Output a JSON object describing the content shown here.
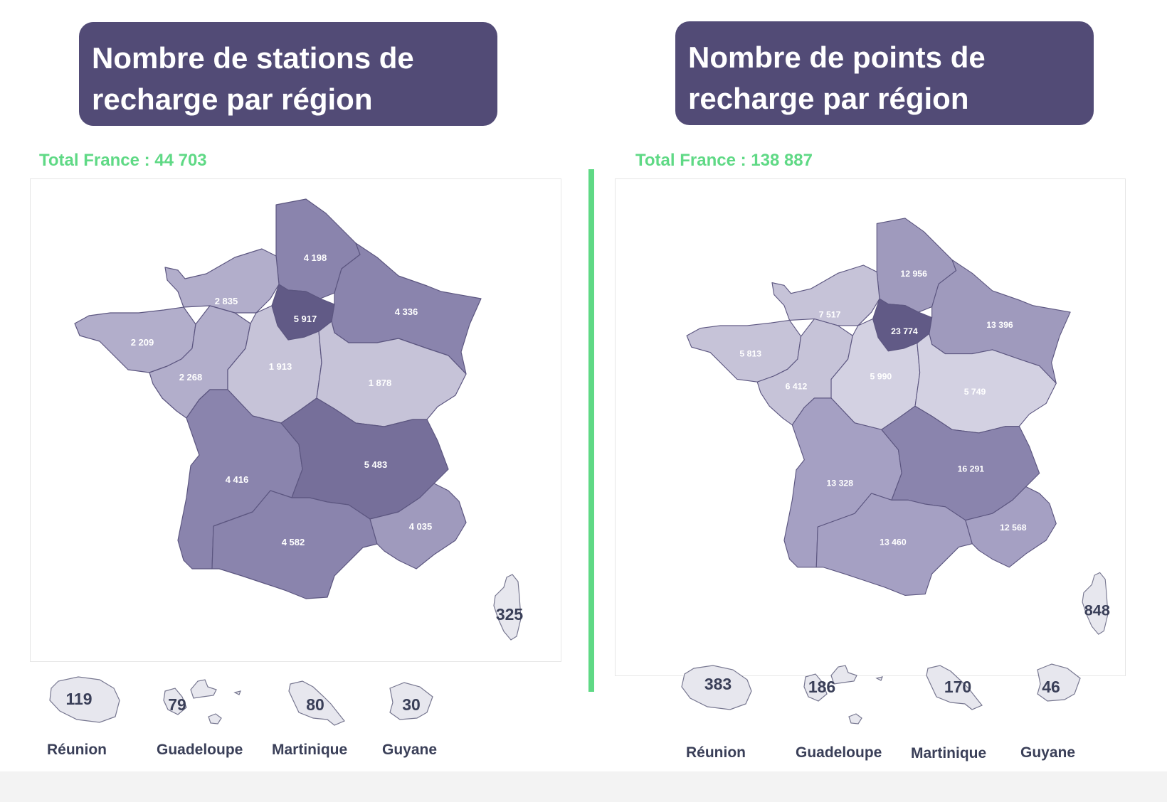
{
  "colors": {
    "title_bg": "#524b76",
    "total_text": "#5fd985",
    "divider": "#5fd985",
    "scale": [
      "#c6c3d8",
      "#b2aecb",
      "#9f9abd",
      "#8a84ad",
      "#766f9a",
      "#615a86"
    ],
    "island": "#e7e7ee"
  },
  "panels": [
    {
      "title_line1": "Nombre de stations de",
      "title_line2": "recharge par région",
      "total": "Total France : 44 703",
      "regions": {
        "hauts_de_france": "4 198",
        "normandie": "2 835",
        "ile_de_france": "5 917",
        "grand_est": "4 336",
        "bretagne": "2 209",
        "pays_de_la_loire": "2 268",
        "centre_val_de_loire": "1 913",
        "bourgogne_franche_comte": "1 878",
        "nouvelle_aquitaine": "4 416",
        "auvergne_rhone_alpes": "5 483",
        "occitanie": "4 582",
        "paca": "4 035"
      },
      "corse": "325",
      "outremer": [
        {
          "name": "Réunion",
          "value": "119"
        },
        {
          "name": "Guadeloupe",
          "value": "79"
        },
        {
          "name": "Martinique",
          "value": "80"
        },
        {
          "name": "Guyane",
          "value": "30"
        }
      ]
    },
    {
      "title_line1": "Nombre de points de",
      "title_line2": "recharge par région",
      "total": "Total France : 138 887",
      "regions": {
        "hauts_de_france": "12 956",
        "normandie": "7 517",
        "ile_de_france": "23 774",
        "grand_est": "13 396",
        "bretagne": "5 813",
        "pays_de_la_loire": "6 412",
        "centre_val_de_loire": "5 990",
        "bourgogne_franche_comte": "5 749",
        "nouvelle_aquitaine": "13 328",
        "auvergne_rhone_alpes": "16 291",
        "occitanie": "13 460",
        "paca": "12 568"
      },
      "corse": "848",
      "outremer": [
        {
          "name": "Réunion",
          "value": "383"
        },
        {
          "name": "Guadeloupe",
          "value": "186"
        },
        {
          "name": "Martinique",
          "value": "170"
        },
        {
          "name": "Guyane",
          "value": "46"
        }
      ]
    }
  ]
}
